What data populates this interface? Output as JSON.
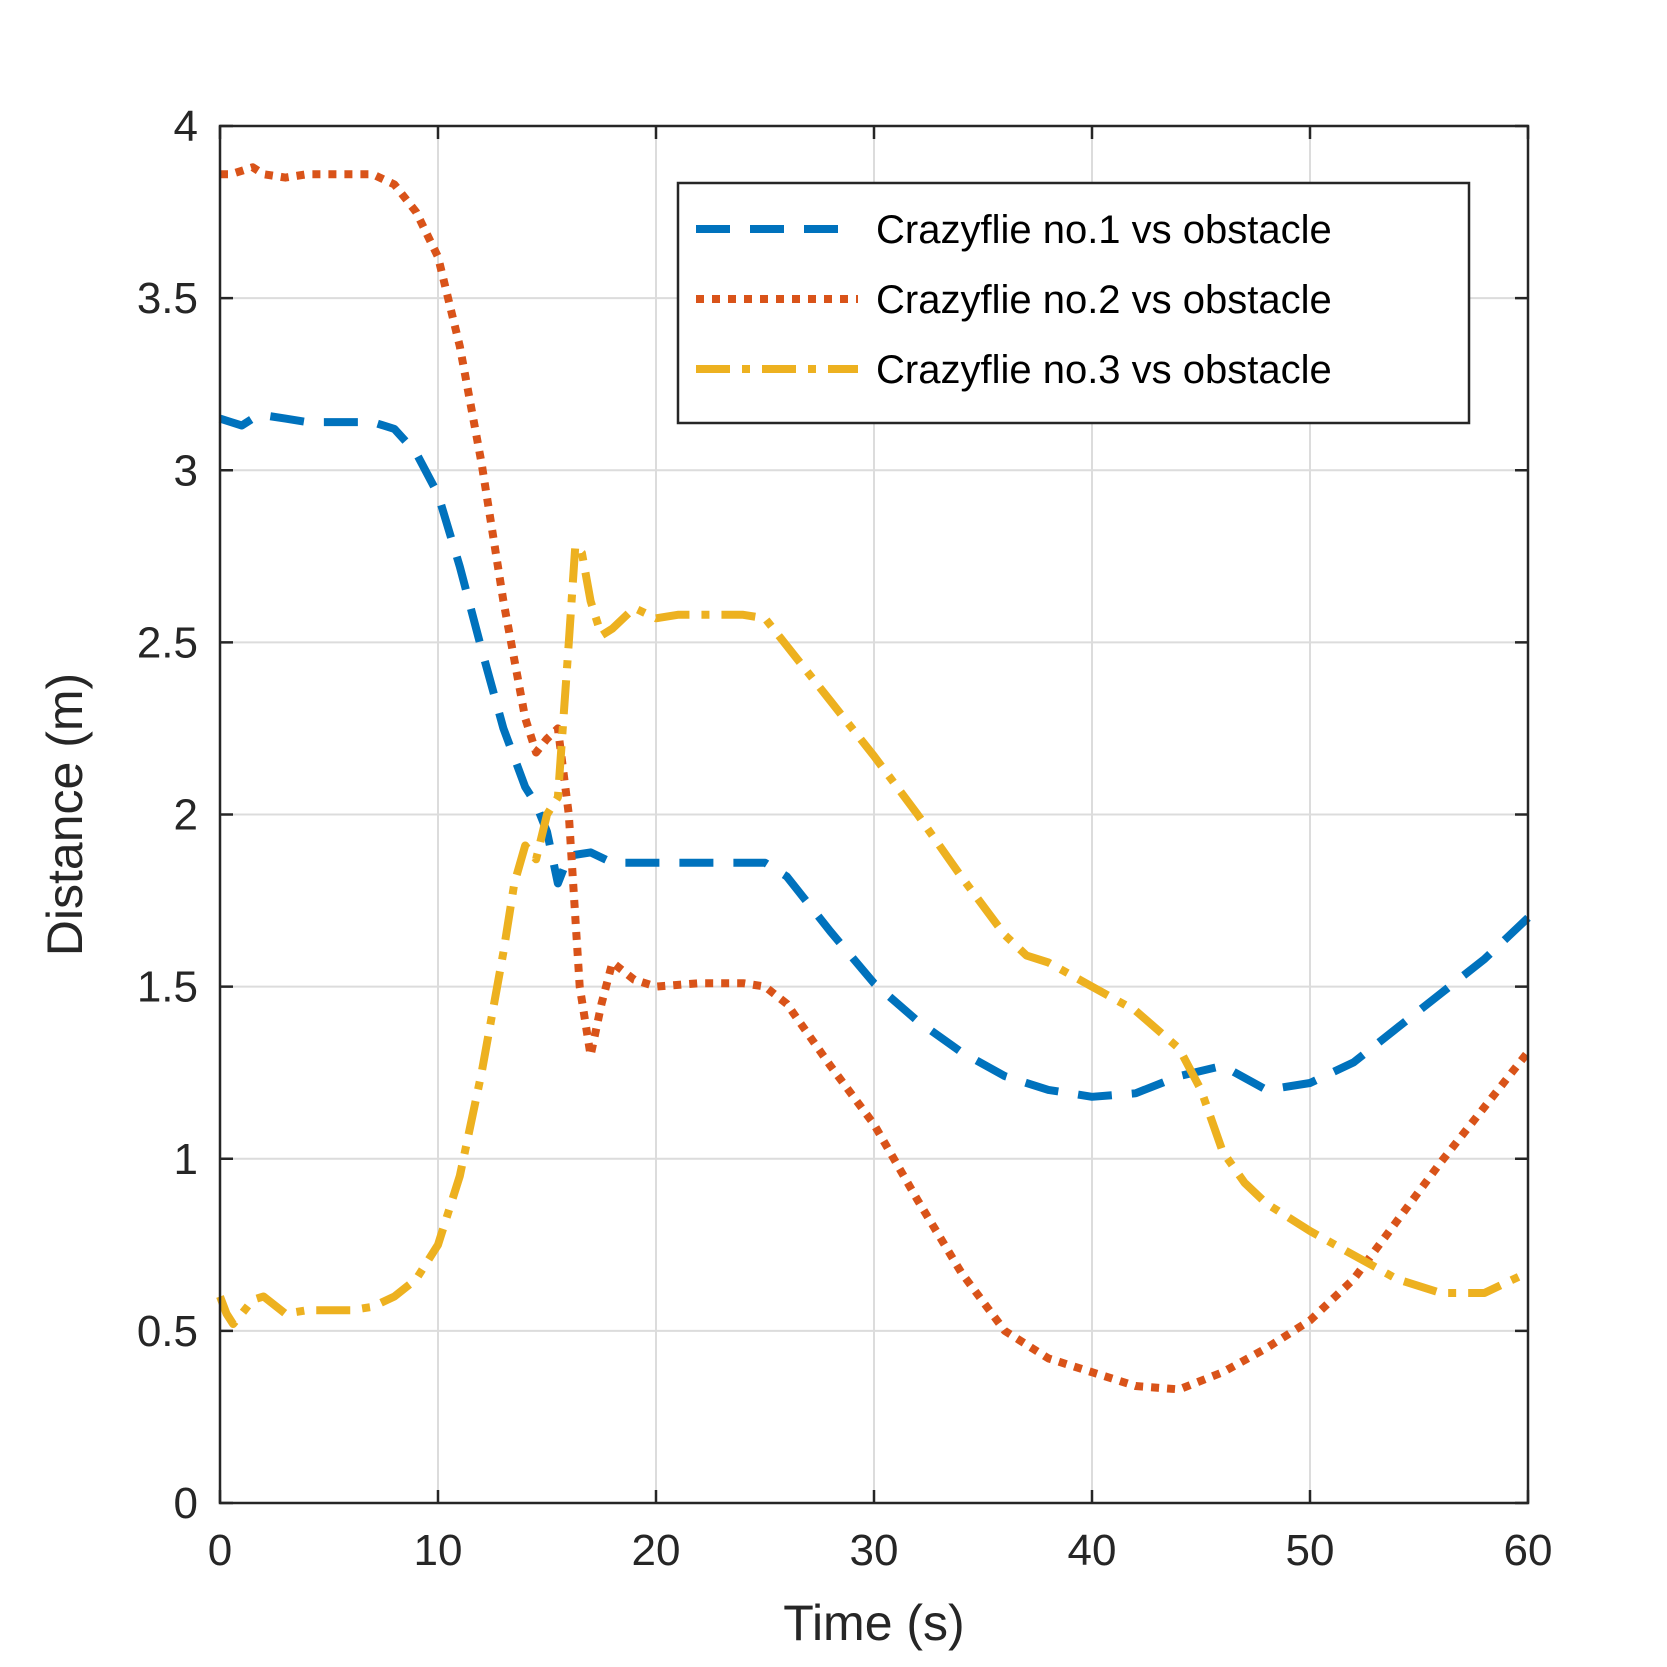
{
  "chart_data": {
    "type": "line",
    "title": "",
    "xlabel": "Time (s)",
    "ylabel": "Distance (m)",
    "xlim": [
      0,
      60
    ],
    "ylim": [
      0,
      4
    ],
    "xticks": [
      "0",
      "10",
      "20",
      "30",
      "40",
      "50",
      "60"
    ],
    "yticks": [
      "0",
      "0.5",
      "1",
      "1.5",
      "2",
      "2.5",
      "3",
      "3.5",
      "4"
    ],
    "grid": true,
    "legend_position": "top-right",
    "series": [
      {
        "name": "Crazyflie no.1 vs obstacle",
        "color": "#0072BD",
        "style": "dashed",
        "x": [
          0,
          0.5,
          1,
          1.5,
          2,
          3,
          4,
          5,
          6,
          7,
          8,
          9,
          10,
          11,
          12,
          13,
          14,
          14.5,
          15,
          15.5,
          16,
          17,
          18,
          19,
          20,
          22,
          24,
          25,
          26,
          28,
          30,
          32,
          34,
          36,
          38,
          40,
          42,
          44,
          46,
          48,
          50,
          52,
          54,
          56,
          58,
          60
        ],
        "y": [
          3.15,
          3.14,
          3.13,
          3.15,
          3.16,
          3.15,
          3.14,
          3.14,
          3.14,
          3.14,
          3.12,
          3.05,
          2.93,
          2.72,
          2.48,
          2.25,
          2.08,
          2.03,
          1.95,
          1.8,
          1.88,
          1.89,
          1.86,
          1.86,
          1.86,
          1.86,
          1.86,
          1.86,
          1.82,
          1.66,
          1.51,
          1.4,
          1.31,
          1.24,
          1.2,
          1.18,
          1.19,
          1.24,
          1.27,
          1.2,
          1.22,
          1.28,
          1.38,
          1.48,
          1.58,
          1.7
        ]
      },
      {
        "name": "Crazyflie no.2 vs obstacle",
        "color": "#D95319",
        "style": "dotted",
        "x": [
          0,
          0.5,
          1,
          1.5,
          2,
          3,
          4,
          5,
          6,
          7,
          8,
          9,
          10,
          11,
          12,
          13,
          14,
          14.5,
          15,
          15.5,
          16,
          16.5,
          17,
          17.5,
          18,
          19,
          20,
          22,
          24,
          25,
          26,
          28,
          30,
          32,
          34,
          36,
          38,
          40,
          42,
          44,
          46,
          48,
          50,
          52,
          54,
          56,
          58,
          60
        ],
        "y": [
          3.86,
          3.86,
          3.87,
          3.88,
          3.86,
          3.85,
          3.86,
          3.86,
          3.86,
          3.86,
          3.83,
          3.75,
          3.62,
          3.36,
          3.02,
          2.62,
          2.28,
          2.18,
          2.22,
          2.25,
          2.0,
          1.5,
          1.3,
          1.45,
          1.57,
          1.52,
          1.5,
          1.51,
          1.51,
          1.5,
          1.45,
          1.27,
          1.1,
          0.88,
          0.67,
          0.5,
          0.42,
          0.38,
          0.34,
          0.33,
          0.38,
          0.45,
          0.53,
          0.65,
          0.82,
          0.99,
          1.15,
          1.31
        ]
      },
      {
        "name": "Crazyflie no.3 vs obstacle",
        "color": "#EDB120",
        "style": "dash-dot",
        "x": [
          0,
          0.3,
          0.6,
          1,
          1.5,
          2,
          3,
          4,
          5,
          6,
          7,
          8,
          9,
          10,
          11,
          12,
          13,
          13.5,
          14,
          14.5,
          15,
          15.5,
          16,
          16.3,
          16.6,
          17,
          17.5,
          18,
          19,
          20,
          21,
          22,
          24,
          25,
          26,
          28,
          30,
          32,
          34,
          36,
          37,
          38,
          40,
          42,
          44,
          45,
          46,
          47,
          48,
          50,
          52,
          54,
          56,
          58,
          60
        ],
        "y": [
          0.6,
          0.55,
          0.52,
          0.55,
          0.59,
          0.6,
          0.55,
          0.56,
          0.56,
          0.56,
          0.57,
          0.6,
          0.65,
          0.75,
          0.95,
          1.25,
          1.6,
          1.8,
          1.91,
          1.87,
          2.0,
          2.05,
          2.5,
          2.78,
          2.76,
          2.62,
          2.52,
          2.54,
          2.6,
          2.57,
          2.58,
          2.58,
          2.58,
          2.57,
          2.49,
          2.33,
          2.17,
          2.0,
          1.82,
          1.65,
          1.59,
          1.57,
          1.5,
          1.43,
          1.32,
          1.2,
          1.02,
          0.93,
          0.87,
          0.79,
          0.72,
          0.65,
          0.61,
          0.61,
          0.67
        ]
      }
    ]
  }
}
